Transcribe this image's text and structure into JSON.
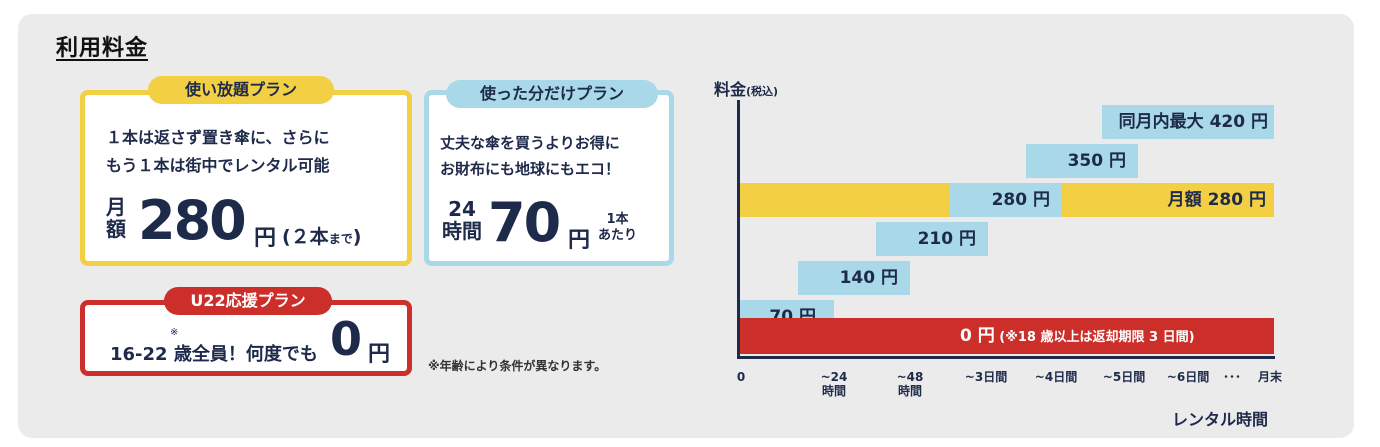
{
  "title": "利用料金",
  "plans": {
    "unlimited": {
      "tag": "使い放題プラン",
      "line1": "１本は返さず置き傘に、さらに",
      "line2": "もう１本は街中でレンタル可能",
      "prefix_top": "月",
      "prefix_bottom": "額",
      "price": "280",
      "unit": "円",
      "note_open": "(２本",
      "note_small": "まで",
      "note_close": ")"
    },
    "payg": {
      "tag": "使った分だけプラン",
      "line1": "丈夫な傘を買うよりお得に",
      "line2": "お財布にも地球にもエコ！",
      "prefix_top": "24",
      "prefix_bottom": "時間",
      "price": "70",
      "unit": "円",
      "note_top": "1本",
      "note_bottom": "あたり"
    },
    "u22": {
      "tag": "U22応援プラン",
      "mark": "※",
      "text": "16-22 歳全員！何度でも",
      "price": "0",
      "unit": "円"
    }
  },
  "footnote": "※年齢により条件が異なります。",
  "chart_data": {
    "type": "bar",
    "title": "",
    "ylabel": "料金",
    "ylabel_sub": "(税込)",
    "xlabel": "レンタル時間",
    "x_ticks": [
      "0",
      "~24\n時間",
      "~48\n時間",
      "~3日間",
      "~4日間",
      "~5日間",
      "~6日間",
      "･･･",
      "月末"
    ],
    "series": [
      {
        "name": "使った分だけプラン",
        "color": "#a9d8e8",
        "points": [
          {
            "period": "~24時間",
            "value": 70,
            "label": "70 円"
          },
          {
            "period": "~48時間",
            "value": 140,
            "label": "140 円"
          },
          {
            "period": "~3日間",
            "value": 210,
            "label": "210 円"
          },
          {
            "period": "~4日間",
            "value": 280,
            "label": "280 円"
          },
          {
            "period": "~5日間",
            "value": 350,
            "label": "350 円"
          },
          {
            "period": "~6日間〜月末",
            "value": 420,
            "label": "同月内最大 420 円"
          }
        ]
      },
      {
        "name": "使い放題プラン",
        "color": "#f2cf43",
        "value": 280,
        "label": "月額 280 円"
      },
      {
        "name": "U22応援プラン",
        "color": "#cc2f2a",
        "value": 0,
        "label": "0 円",
        "note": "(※18 歳以上は返却期限 3 日間)"
      }
    ]
  }
}
